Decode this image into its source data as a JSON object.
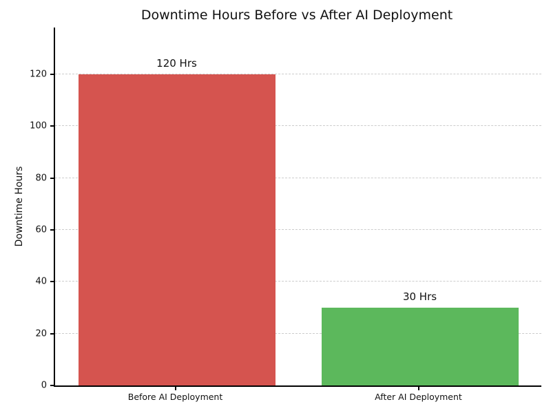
{
  "chart_data": {
    "type": "bar",
    "title": "Downtime Hours Before vs After AI Deployment",
    "xlabel": "",
    "ylabel": "Downtime Hours",
    "categories": [
      "Before AI Deployment",
      "After AI Deployment"
    ],
    "values": [
      120,
      30
    ],
    "data_labels": [
      "120 Hrs",
      "30 Hrs"
    ],
    "bar_colors": [
      "#d5544f",
      "#5cb85c"
    ],
    "yticks": [
      0,
      20,
      40,
      60,
      80,
      100,
      120
    ],
    "ylim": [
      0,
      138
    ],
    "grid": "horizontal-dashed",
    "gridline_color": "#cccccc",
    "legend": "none",
    "background_color": "#ffffff"
  }
}
